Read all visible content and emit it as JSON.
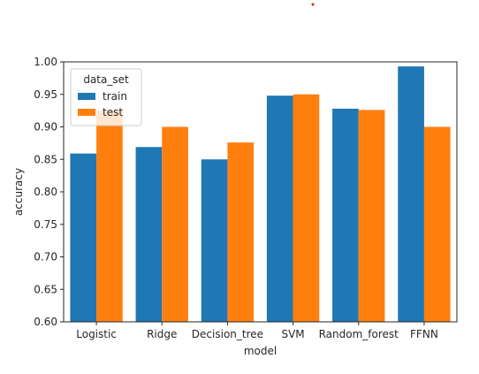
{
  "chart_data": {
    "type": "bar",
    "title": "",
    "xlabel": "model",
    "ylabel": "accuracy",
    "categories": [
      "Logistic",
      "Ridge",
      "Decision_tree",
      "SVM",
      "Random_forest",
      "FFNN"
    ],
    "series": [
      {
        "name": "train",
        "color": "#1f77b4",
        "values": [
          0.859,
          0.869,
          0.85,
          0.948,
          0.928,
          0.993
        ]
      },
      {
        "name": "test",
        "color": "#ff7f0e",
        "values": [
          0.925,
          0.9,
          0.876,
          0.95,
          0.926,
          0.9
        ]
      }
    ],
    "ylim": [
      0.6,
      1.0
    ],
    "yticks": [
      "0.60",
      "0.65",
      "0.70",
      "0.75",
      "0.80",
      "0.85",
      "0.90",
      "0.95",
      "1.00"
    ],
    "legend": {
      "title": "data_set",
      "placement": "top-left"
    },
    "grid": false
  }
}
